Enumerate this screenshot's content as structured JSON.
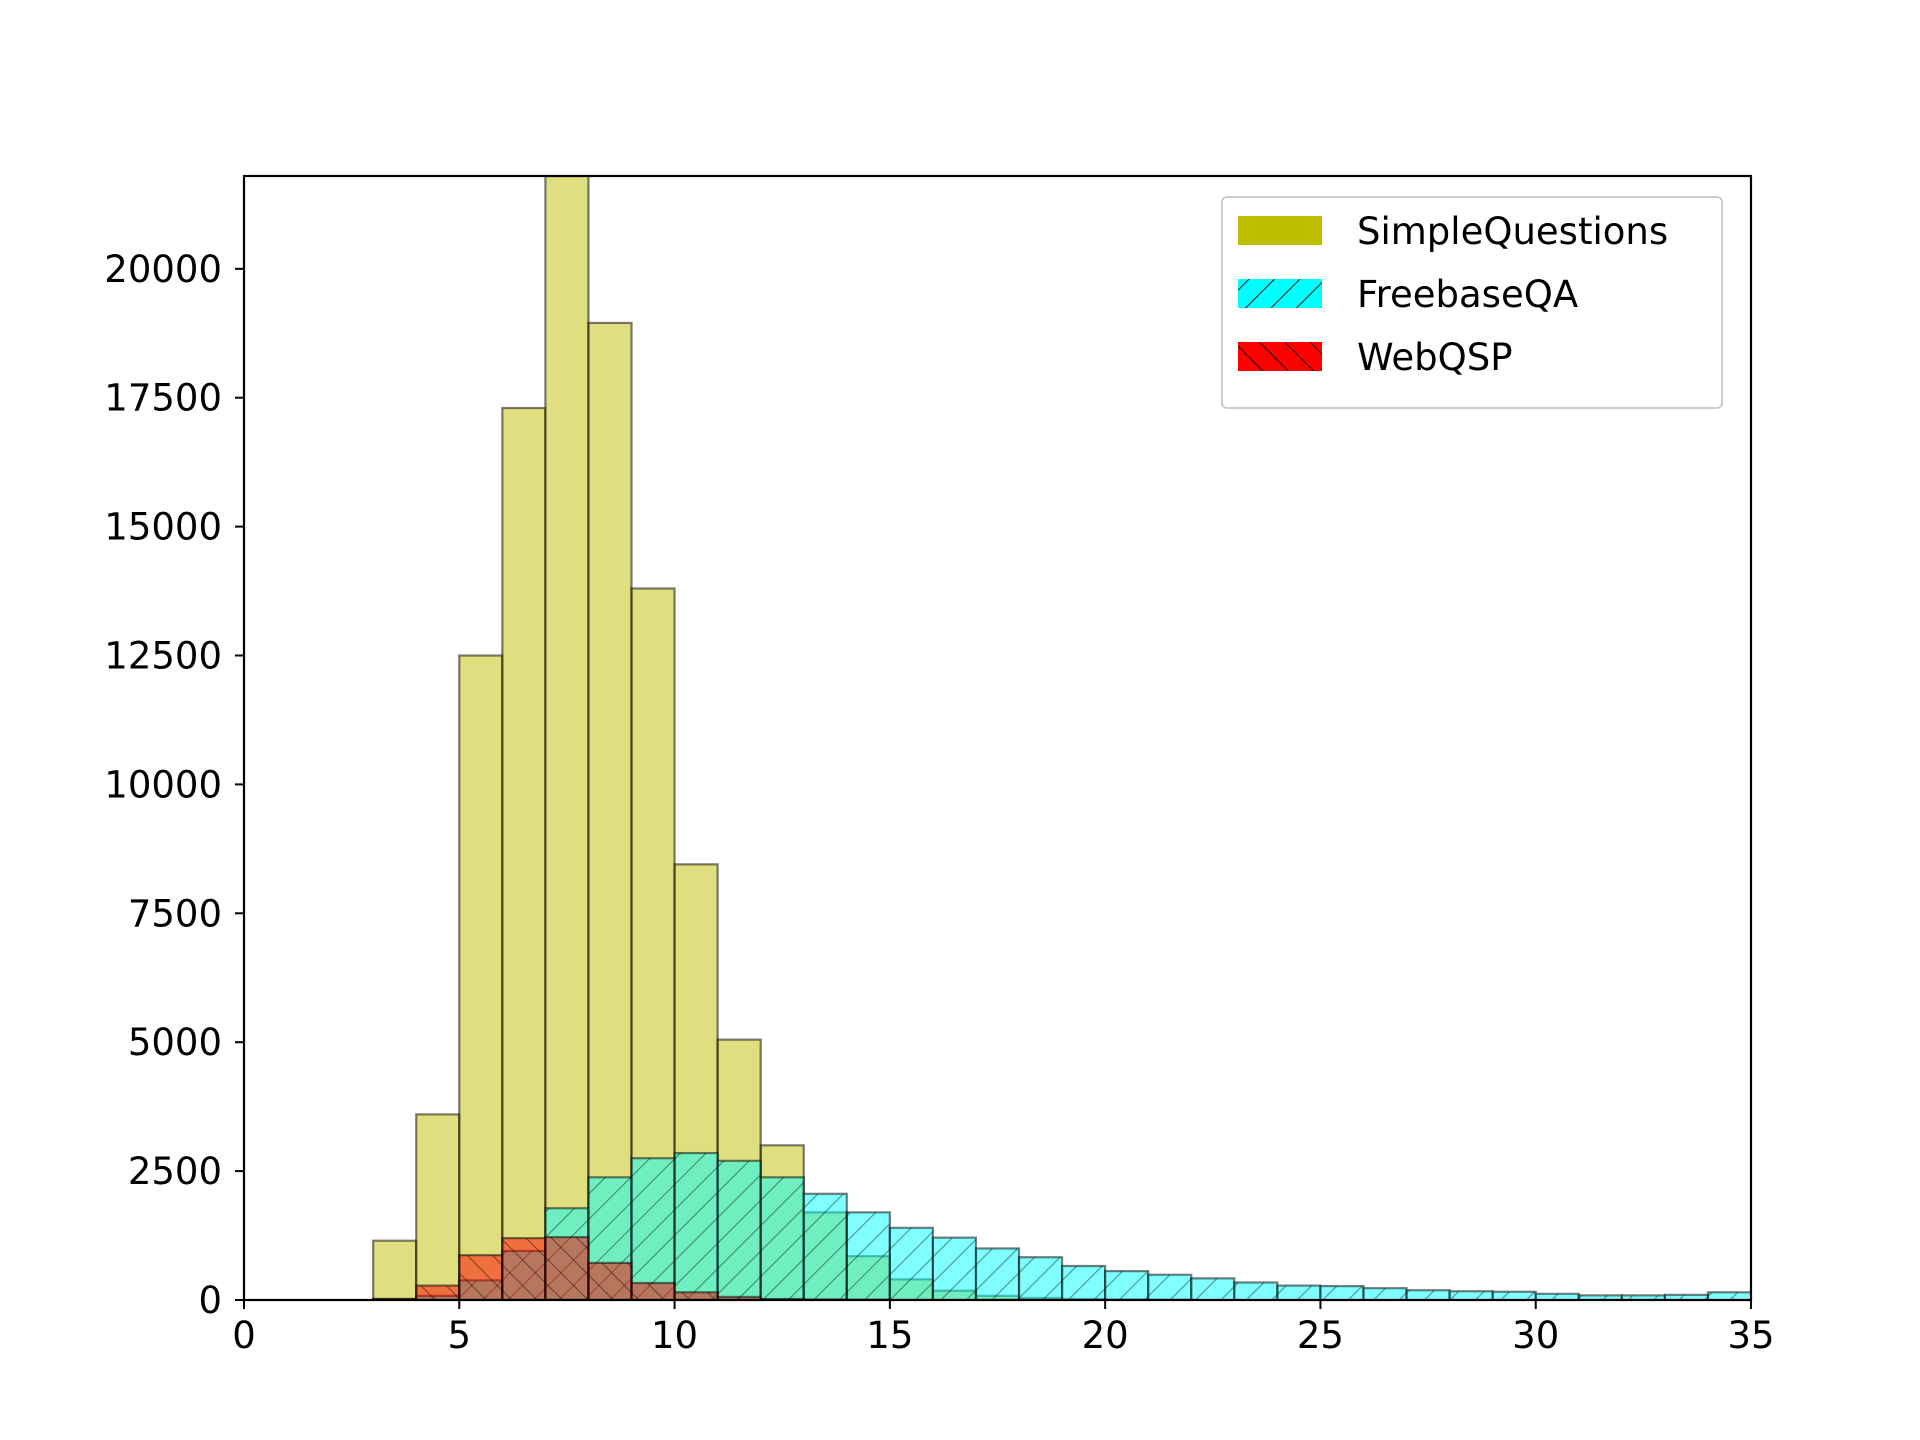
{
  "chart_data": {
    "type": "bar",
    "chart_kind": "overlaid histogram",
    "title": "",
    "xlabel": "",
    "ylabel": "",
    "xlim": [
      0,
      35
    ],
    "ylim": [
      0,
      21800
    ],
    "xticks": [
      0,
      5,
      10,
      15,
      20,
      25,
      30,
      35
    ],
    "yticks": [
      0,
      2500,
      5000,
      7500,
      10000,
      12500,
      15000,
      17500,
      20000
    ],
    "bin_width": 1,
    "bin_starts": [
      0,
      1,
      2,
      3,
      4,
      5,
      6,
      7,
      8,
      9,
      10,
      11,
      12,
      13,
      14,
      15,
      16,
      17,
      18,
      19,
      20,
      21,
      22,
      23,
      24,
      25,
      26,
      27,
      28,
      29,
      30,
      31,
      32,
      33,
      34
    ],
    "grid": false,
    "legend_position": "top-right",
    "series": [
      {
        "name": "SimpleQuestions",
        "color": "#bfbf00",
        "hatch": "none",
        "values": [
          0,
          0,
          0,
          1150,
          3600,
          12500,
          17300,
          21800,
          18950,
          13800,
          8450,
          5050,
          3000,
          1700,
          850,
          400,
          180,
          80,
          40,
          20,
          10,
          5,
          0,
          0,
          0,
          0,
          0,
          0,
          0,
          0,
          0,
          0,
          0,
          0,
          0
        ]
      },
      {
        "name": "FreebaseQA",
        "color": "#00ffff",
        "hatch": "backslash",
        "values": [
          0,
          0,
          0,
          20,
          80,
          380,
          950,
          1780,
          2380,
          2750,
          2850,
          2700,
          2380,
          2060,
          1700,
          1400,
          1210,
          1000,
          830,
          660,
          560,
          490,
          420,
          340,
          280,
          270,
          230,
          190,
          170,
          160,
          120,
          90,
          90,
          100,
          150
        ]
      },
      {
        "name": "WebQSP",
        "color": "#ff0000",
        "hatch": "slash",
        "values": [
          0,
          0,
          0,
          20,
          280,
          870,
          1200,
          1220,
          720,
          330,
          150,
          60,
          20,
          10,
          5,
          0,
          0,
          0,
          0,
          0,
          0,
          0,
          0,
          0,
          0,
          0,
          0,
          0,
          0,
          0,
          0,
          0,
          0,
          0,
          0
        ]
      }
    ]
  }
}
